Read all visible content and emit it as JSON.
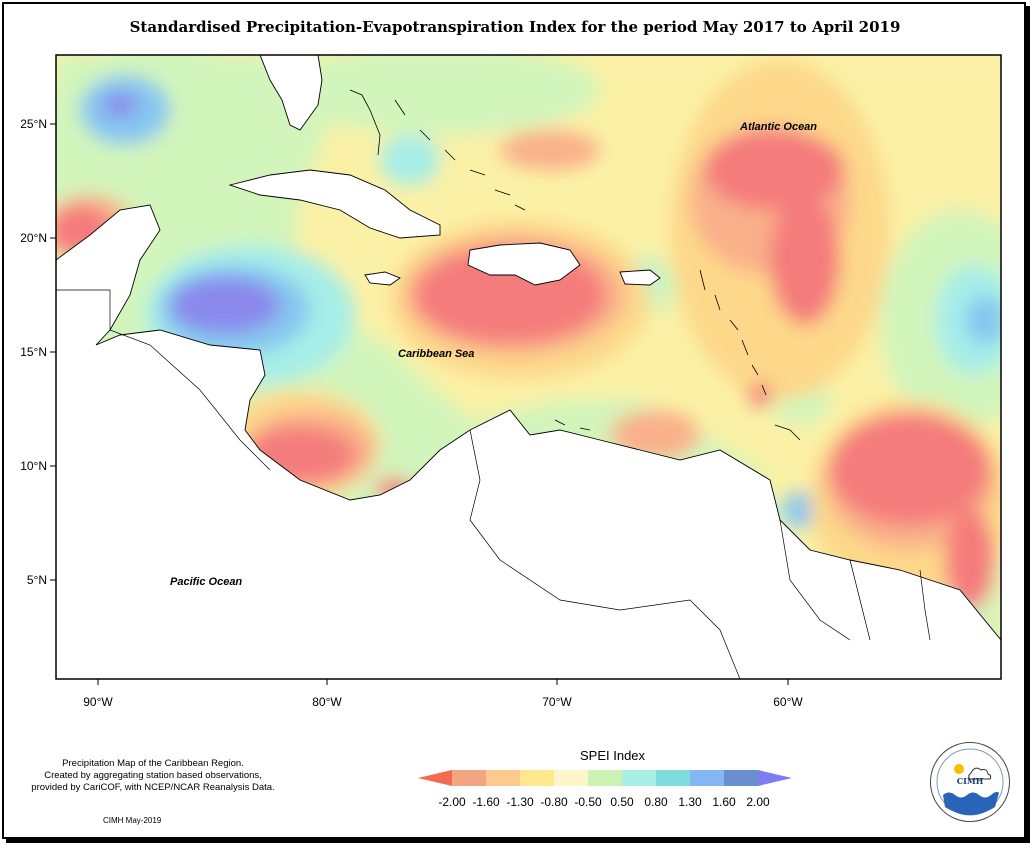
{
  "title": "Standardised Precipitation-Evapotranspiration Index for the period May 2017 to April 2019",
  "map": {
    "lat_ticks": [
      "25°N",
      "20°N",
      "15°N",
      "10°N",
      "5°N"
    ],
    "lon_ticks": [
      "90°W",
      "80°W",
      "70°W",
      "60°W"
    ],
    "ocean_labels": {
      "atlantic": "Atlantic Ocean",
      "caribbean": "Caribbean Sea",
      "pacific": "Pacific Ocean"
    }
  },
  "legend": {
    "title": "SPEI Index",
    "ticks": [
      "-2.00",
      "-1.60",
      "-1.30",
      "-0.80",
      "-0.50",
      "0.50",
      "0.80",
      "1.30",
      "1.60",
      "2.00"
    ],
    "colors": [
      "#f26a4f",
      "#f4a582",
      "#fdc98f",
      "#fee98c",
      "#fdf6cc",
      "#ccf2b4",
      "#a8f0e6",
      "#7fdcdc",
      "#84b6f4",
      "#6a8fcf",
      "#7d7cf0"
    ]
  },
  "caption": {
    "line1": "Precipitation Map of the Caribbean Region.",
    "line2": "Created by aggregating station based observations,",
    "line3": "provided by CariCOF, with NCEP/NCAR Reanalysis Data.",
    "credit": "CIMH May-2019"
  },
  "logo": {
    "text": "CIMH"
  },
  "colors": {
    "very_dry": "#f47c7c",
    "dry": "#f9b08a",
    "moderately_dry": "#fdd88a",
    "near_normal_dry": "#fbf1a6",
    "near_normal_wet": "#d2f5bb",
    "wet": "#a6eee8",
    "very_wet": "#86c6f0",
    "extremely_wet": "#8a88ec"
  }
}
